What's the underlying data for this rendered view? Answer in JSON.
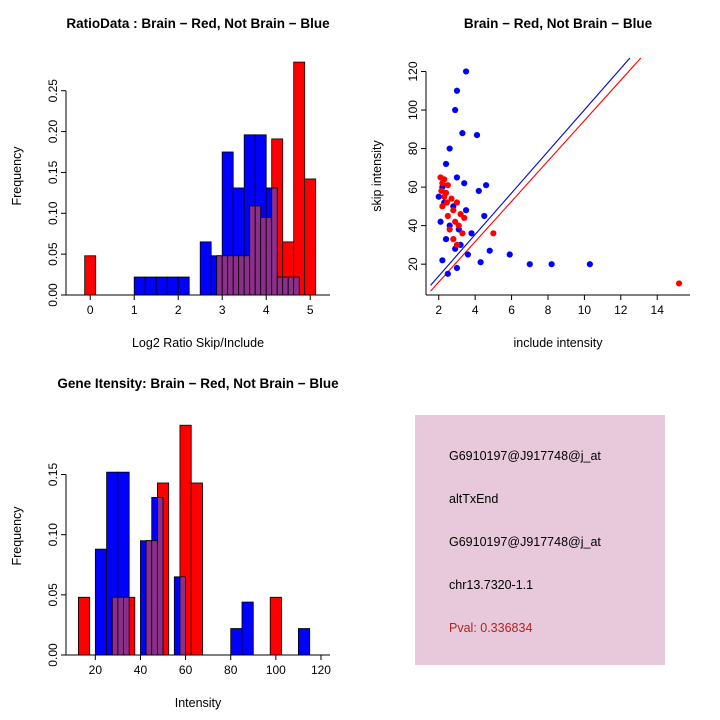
{
  "page": {
    "background": "#ffffff"
  },
  "colors": {
    "red": "#FF0000",
    "blue": "#0000FF",
    "overlap_purple": "#8B2F8B",
    "line_blue": "#0000CD",
    "pval_red": "#B22222",
    "info_bg": "#E8C9DB"
  },
  "chart_data": [
    {
      "type": "bar",
      "id": "ratio-hist",
      "title": "RatioData : Brain − Red, Not Brain − Blue",
      "xlabel": "Log2 Ratio Skip/Include",
      "ylabel": "Frequency",
      "xlim": [
        -0.55,
        5.45
      ],
      "ylim": [
        0,
        0.29
      ],
      "xticks": [
        0,
        1,
        2,
        3,
        4,
        5
      ],
      "xtick_labels": [
        "0",
        "1",
        "2",
        "3",
        "4",
        "5"
      ],
      "yticks": [
        0,
        0.05,
        0.1,
        0.15,
        0.2,
        0.25
      ],
      "ytick_labels": [
        "0.00",
        "0.05",
        "0.10",
        "0.15",
        "0.20",
        "0.25"
      ],
      "bin_width": 0.25,
      "overlap_color": "#8B2F8B",
      "grid": false,
      "series": [
        {
          "name": "Not Brain (blue)",
          "color": "#0000FF",
          "bins": [
            [
              1.0,
              0.022
            ],
            [
              1.25,
              0.022
            ],
            [
              1.5,
              0.022
            ],
            [
              1.75,
              0.022
            ],
            [
              2.0,
              0.022
            ],
            [
              2.5,
              0.065
            ],
            [
              2.75,
              0.048
            ],
            [
              3.0,
              0.175
            ],
            [
              3.25,
              0.131
            ],
            [
              3.5,
              0.196
            ],
            [
              3.75,
              0.196
            ],
            [
              4.0,
              0.131
            ],
            [
              4.25,
              0.022
            ],
            [
              4.5,
              0.022
            ]
          ]
        },
        {
          "name": "Brain (red)",
          "color": "#FF0000",
          "bins": [
            [
              -0.125,
              0.048
            ],
            [
              2.875,
              0.048
            ],
            [
              3.125,
              0.048
            ],
            [
              3.375,
              0.048
            ],
            [
              3.625,
              0.109
            ],
            [
              3.875,
              0.095
            ],
            [
              4.125,
              0.191
            ],
            [
              4.375,
              0.065
            ],
            [
              4.625,
              0.285
            ],
            [
              4.875,
              0.142
            ]
          ]
        }
      ]
    },
    {
      "type": "scatter",
      "id": "intensity-scatter",
      "title": "Brain − Red, Not Brain − Blue",
      "xlabel": "include intensity",
      "ylabel": "skip intensity",
      "xlim": [
        1.3,
        15.8
      ],
      "ylim": [
        4,
        127
      ],
      "xticks": [
        2,
        4,
        6,
        8,
        10,
        12,
        14
      ],
      "xtick_labels": [
        "2",
        "4",
        "6",
        "8",
        "10",
        "12",
        "14"
      ],
      "yticks": [
        20,
        40,
        60,
        80,
        100,
        120
      ],
      "ytick_labels": [
        "20",
        "40",
        "60",
        "80",
        "100",
        "120"
      ],
      "grid": false,
      "series": [
        {
          "name": "Not Brain (blue)",
          "color": "#0000FF",
          "points": [
            [
              3.5,
              120
            ],
            [
              3.0,
              110
            ],
            [
              2.9,
              100
            ],
            [
              3.3,
              88
            ],
            [
              4.1,
              87
            ],
            [
              2.6,
              80
            ],
            [
              2.4,
              72
            ],
            [
              3.0,
              65
            ],
            [
              3.4,
              62
            ],
            [
              4.6,
              61
            ],
            [
              2.2,
              60
            ],
            [
              4.2,
              58
            ],
            [
              2.0,
              55
            ],
            [
              2.3,
              52
            ],
            [
              2.8,
              50
            ],
            [
              3.5,
              48
            ],
            [
              4.5,
              45
            ],
            [
              2.1,
              42
            ],
            [
              2.6,
              40
            ],
            [
              3.1,
              38
            ],
            [
              3.8,
              36
            ],
            [
              2.4,
              33
            ],
            [
              3.2,
              30
            ],
            [
              2.9,
              28
            ],
            [
              4.8,
              27
            ],
            [
              3.6,
              25
            ],
            [
              5.9,
              25
            ],
            [
              2.2,
              22
            ],
            [
              4.3,
              21
            ],
            [
              7.0,
              20
            ],
            [
              8.2,
              20
            ],
            [
              10.3,
              20
            ],
            [
              3.0,
              18
            ],
            [
              2.5,
              15
            ]
          ]
        },
        {
          "name": "Brain (red)",
          "color": "#FF0000",
          "points": [
            [
              2.1,
              65
            ],
            [
              2.3,
              64
            ],
            [
              2.2,
              62
            ],
            [
              2.5,
              61
            ],
            [
              2.15,
              58
            ],
            [
              2.4,
              57
            ],
            [
              2.3,
              55
            ],
            [
              2.7,
              54
            ],
            [
              2.45,
              52
            ],
            [
              3.0,
              52
            ],
            [
              2.2,
              50
            ],
            [
              2.8,
              48
            ],
            [
              3.2,
              46
            ],
            [
              2.5,
              45
            ],
            [
              3.4,
              44
            ],
            [
              2.9,
              42
            ],
            [
              3.1,
              40
            ],
            [
              2.6,
              38
            ],
            [
              3.3,
              36
            ],
            [
              5.0,
              36
            ],
            [
              2.8,
              33
            ],
            [
              3.0,
              30
            ],
            [
              15.2,
              10
            ]
          ]
        }
      ],
      "lines": [
        {
          "name": "fit-red",
          "color": "#FF0000",
          "from": [
            1.55,
            6
          ],
          "to": [
            13.1,
            127
          ]
        },
        {
          "name": "fit-blue",
          "color": "#0000CD",
          "from": [
            1.55,
            9
          ],
          "to": [
            12.5,
            127
          ]
        }
      ]
    },
    {
      "type": "bar",
      "id": "gene-hist",
      "title": "Gene Itensity: Brain − Red, Not Brain − Blue",
      "xlabel": "Intensity",
      "ylabel": "Frequency",
      "xlim": [
        7,
        124
      ],
      "ylim": [
        0,
        0.197
      ],
      "xticks": [
        20,
        40,
        60,
        80,
        100,
        120
      ],
      "xtick_labels": [
        "20",
        "40",
        "60",
        "80",
        "100",
        "120"
      ],
      "yticks": [
        0,
        0.05,
        0.1,
        0.15
      ],
      "ytick_labels": [
        "0.00",
        "0.05",
        "0.10",
        "0.15"
      ],
      "bin_width": 5,
      "overlap_color": "#8B2F8B",
      "grid": false,
      "series": [
        {
          "name": "Not Brain (blue)",
          "color": "#0000FF",
          "bins": [
            [
              20,
              0.088
            ],
            [
              25,
              0.152
            ],
            [
              30,
              0.152
            ],
            [
              40,
              0.095
            ],
            [
              45,
              0.131
            ],
            [
              55,
              0.065
            ],
            [
              80,
              0.022
            ],
            [
              85,
              0.044
            ],
            [
              110,
              0.022
            ]
          ]
        },
        {
          "name": "Brain (red)",
          "color": "#FF0000",
          "bins": [
            [
              12.5,
              0.048
            ],
            [
              27.5,
              0.048
            ],
            [
              32.5,
              0.048
            ],
            [
              42.5,
              0.095
            ],
            [
              47.5,
              0.143
            ],
            [
              57.5,
              0.191
            ],
            [
              62.5,
              0.143
            ],
            [
              97.5,
              0.048
            ]
          ]
        }
      ]
    }
  ],
  "panels": {
    "info_box": {
      "bg": "#E8C9DB",
      "lines": [
        {
          "text": "G6910197@J917748@j_at",
          "color": "#000000"
        },
        {
          "text": "altTxEnd",
          "color": "#000000"
        },
        {
          "text": "G6910197@J917748@j_at",
          "color": "#000000"
        },
        {
          "text": "chr13.7320-1.1",
          "color": "#000000"
        },
        {
          "text": "Pval: 0.336834",
          "color": "#B22222"
        }
      ]
    }
  }
}
